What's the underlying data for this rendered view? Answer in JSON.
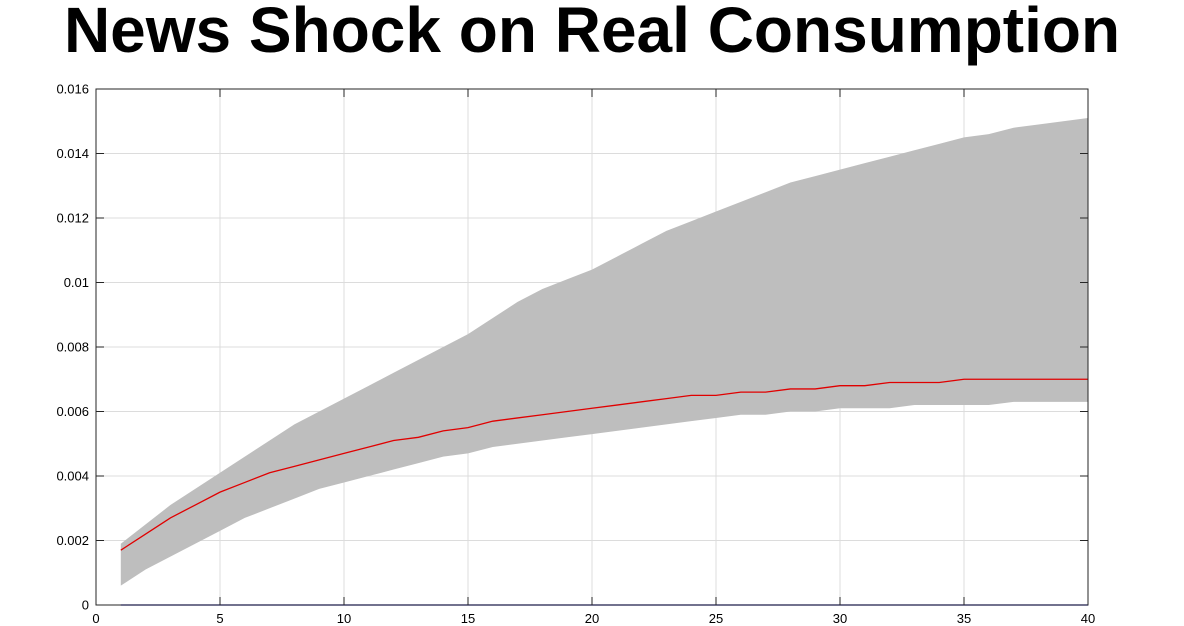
{
  "chart_data": {
    "type": "area",
    "title": "News Shock on Real Consumption",
    "xlabel": "",
    "ylabel": "",
    "xlim": [
      0,
      40
    ],
    "ylim": [
      0,
      0.016
    ],
    "xticks": [
      0,
      5,
      10,
      15,
      20,
      25,
      30,
      35,
      40
    ],
    "yticks": [
      0,
      0.002,
      0.004,
      0.006,
      0.008,
      0.01,
      0.012,
      0.014,
      0.016
    ],
    "xtick_labels": [
      "0",
      "5",
      "10",
      "15",
      "20",
      "25",
      "30",
      "35",
      "40"
    ],
    "ytick_labels": [
      "0",
      "0.002",
      "0.004",
      "0.006",
      "0.008",
      "0.01",
      "0.012",
      "0.014",
      "0.016"
    ],
    "grid": true,
    "x": [
      1,
      2,
      3,
      4,
      5,
      6,
      7,
      8,
      9,
      10,
      11,
      12,
      13,
      14,
      15,
      16,
      17,
      18,
      19,
      20,
      21,
      22,
      23,
      24,
      25,
      26,
      27,
      28,
      29,
      30,
      31,
      32,
      33,
      34,
      35,
      36,
      37,
      38,
      39,
      40
    ],
    "band_upper": [
      0.0019,
      0.0025,
      0.0031,
      0.0036,
      0.0041,
      0.0046,
      0.0051,
      0.0056,
      0.006,
      0.0064,
      0.0068,
      0.0072,
      0.0076,
      0.008,
      0.0084,
      0.0089,
      0.0094,
      0.0098,
      0.0101,
      0.0104,
      0.0108,
      0.0112,
      0.0116,
      0.0119,
      0.0122,
      0.0125,
      0.0128,
      0.0131,
      0.0133,
      0.0135,
      0.0137,
      0.0139,
      0.0141,
      0.0143,
      0.0145,
      0.0146,
      0.0148,
      0.0149,
      0.015,
      0.0151
    ],
    "band_lower": [
      0.0006,
      0.0011,
      0.0015,
      0.0019,
      0.0023,
      0.0027,
      0.003,
      0.0033,
      0.0036,
      0.0038,
      0.004,
      0.0042,
      0.0044,
      0.0046,
      0.0047,
      0.0049,
      0.005,
      0.0051,
      0.0052,
      0.0053,
      0.0054,
      0.0055,
      0.0056,
      0.0057,
      0.0058,
      0.0059,
      0.0059,
      0.006,
      0.006,
      0.0061,
      0.0061,
      0.0061,
      0.0062,
      0.0062,
      0.0062,
      0.0062,
      0.0063,
      0.0063,
      0.0063,
      0.0063
    ],
    "series": [
      {
        "values": [
          0.0017,
          0.0022,
          0.0027,
          0.0031,
          0.0035,
          0.0038,
          0.0041,
          0.0043,
          0.0045,
          0.0047,
          0.0049,
          0.0051,
          0.0052,
          0.0054,
          0.0055,
          0.0057,
          0.0058,
          0.0059,
          0.006,
          0.0061,
          0.0062,
          0.0063,
          0.0064,
          0.0065,
          0.0065,
          0.0066,
          0.0066,
          0.0067,
          0.0067,
          0.0068,
          0.0068,
          0.0069,
          0.0069,
          0.0069,
          0.007,
          0.007,
          0.007,
          0.007,
          0.007,
          0.007
        ],
        "color": "#e00000"
      },
      {
        "values": [
          0,
          0,
          0,
          0,
          0,
          0,
          0,
          0,
          0,
          0,
          0,
          0,
          0,
          0,
          0,
          0,
          0,
          0,
          0,
          0,
          0,
          0,
          0,
          0,
          0,
          0,
          0,
          0,
          0,
          0,
          0,
          0,
          0,
          0,
          0,
          0,
          0,
          0,
          0,
          0
        ],
        "color": "#0000e0"
      }
    ],
    "band_color": "#bebebe",
    "grid_color": "#dcdcdc"
  }
}
